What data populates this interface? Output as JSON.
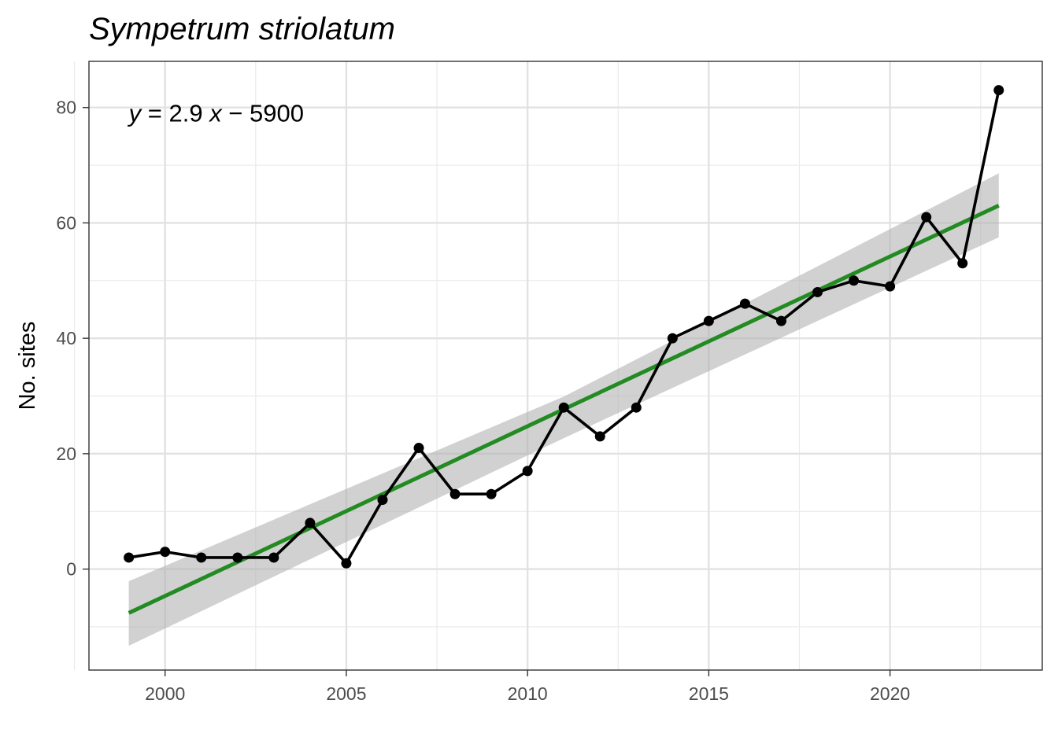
{
  "chart_data": {
    "type": "line",
    "title": "Sympetrum striolatum",
    "xlabel": "",
    "ylabel": "No. sites",
    "xlim": [
      1997.9,
      2024.2
    ],
    "ylim": [
      -17.5,
      88
    ],
    "x_ticks": [
      2000,
      2005,
      2010,
      2015,
      2020
    ],
    "x_minor_ticks": [
      1997.5,
      2002.5,
      2007.5,
      2012.5,
      2017.5,
      2022.5
    ],
    "y_ticks": [
      0,
      20,
      40,
      60,
      80
    ],
    "y_minor_ticks": [
      -10,
      10,
      30,
      50,
      70
    ],
    "grid": true,
    "annotation": {
      "y_var": "y",
      "equals": " = 2.9 ",
      "x_var": "x",
      "rest": " − 5900",
      "anchor": [
        1999,
        80
      ]
    },
    "series": [
      {
        "kind": "observed",
        "color": "#000000",
        "x": [
          1999,
          2000,
          2001,
          2002,
          2003,
          2004,
          2005,
          2006,
          2007,
          2008,
          2009,
          2010,
          2011,
          2012,
          2013,
          2014,
          2015,
          2016,
          2017,
          2018,
          2019,
          2020,
          2021,
          2022,
          2023
        ],
        "y": [
          2,
          3,
          2,
          2,
          2,
          8,
          1,
          12,
          21,
          13,
          13,
          17,
          28,
          23,
          28,
          40,
          43,
          46,
          43,
          48,
          50,
          49,
          61,
          53,
          83
        ]
      },
      {
        "kind": "fit",
        "color": "#228b22",
        "x": [
          1999,
          2023
        ],
        "y": [
          -7.6,
          63.0
        ]
      }
    ],
    "confidence_band": {
      "color": "#b3b3b3",
      "x": [
        1999,
        2011,
        2023
      ],
      "lower": [
        -13.3,
        22.7,
        57.5
      ],
      "upper": [
        -2.1,
        29.9,
        68.6
      ]
    }
  }
}
